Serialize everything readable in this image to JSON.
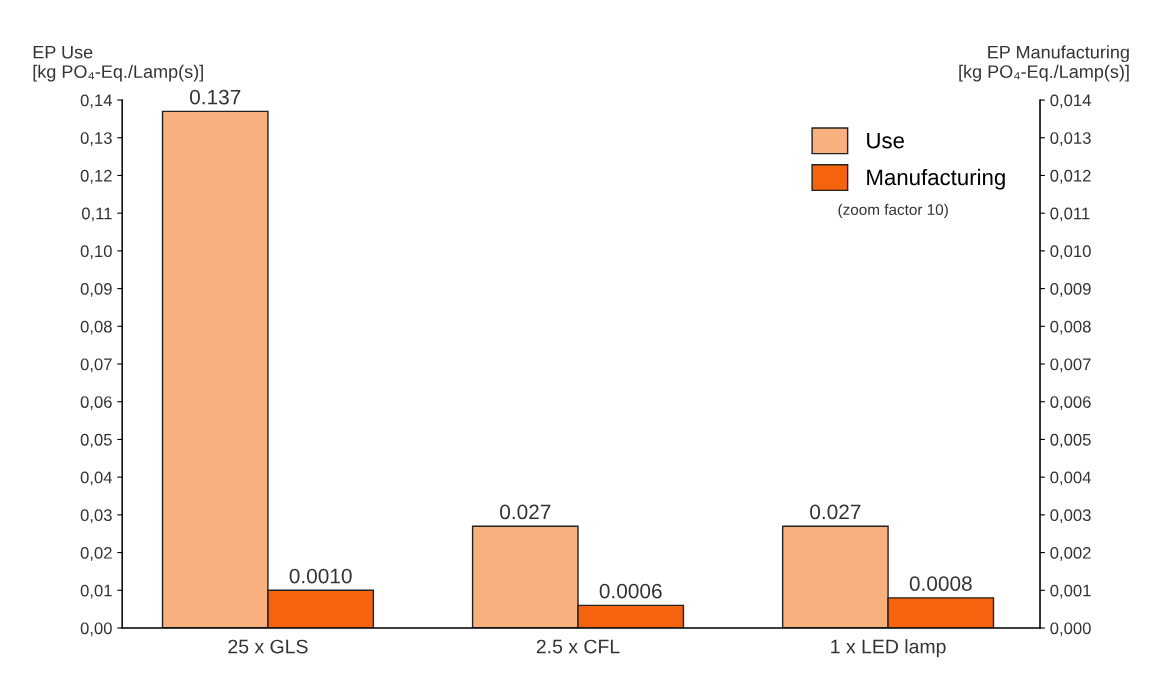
{
  "chart_data": {
    "type": "bar",
    "ylabel": "EP Use\n[kg PO₄-Eq./Lamp(s)]",
    "y2label": "EP Manufacturing\n[kg PO₄-Eq./Lamp(s)]",
    "categories": [
      "25 x GLS",
      "2.5 x CFL",
      "1 x LED lamp"
    ],
    "series": [
      {
        "name": "Use",
        "color": "#f8b07f",
        "values": [
          0.137,
          0.027,
          0.027
        ],
        "value_labels": [
          "0.137",
          "0.027",
          "0.027"
        ]
      },
      {
        "name": "Manufacturing",
        "color": "#f5630f",
        "values": [
          0.001,
          0.0006,
          0.0008
        ],
        "value_labels": [
          "0.0010",
          "0.0006",
          "0.0008"
        ],
        "axis": "y2"
      }
    ],
    "ylim": [
      0,
      0.14
    ],
    "yticks": [
      {
        "value": 0,
        "label": "0,00"
      },
      {
        "value": 0.01,
        "label": "0,01"
      },
      {
        "value": 0.02,
        "label": "0,02"
      },
      {
        "value": 0.03,
        "label": "0,03"
      },
      {
        "value": 0.04,
        "label": "0,04"
      },
      {
        "value": 0.05,
        "label": "0,05"
      },
      {
        "value": 0.06,
        "label": "0,06"
      },
      {
        "value": 0.07,
        "label": "0,07"
      },
      {
        "value": 0.08,
        "label": "0,08"
      },
      {
        "value": 0.09,
        "label": "0,09"
      },
      {
        "value": 0.1,
        "label": "0,10"
      },
      {
        "value": 0.11,
        "label": "0,11"
      },
      {
        "value": 0.12,
        "label": "0,12"
      },
      {
        "value": 0.13,
        "label": "0,13"
      },
      {
        "value": 0.14,
        "label": "0,14"
      }
    ],
    "y2lim": [
      0,
      0.014
    ],
    "y2ticks": [
      {
        "value": 0,
        "label": "0,000"
      },
      {
        "value": 0.001,
        "label": "0,001"
      },
      {
        "value": 0.002,
        "label": "0,002"
      },
      {
        "value": 0.003,
        "label": "0,003"
      },
      {
        "value": 0.004,
        "label": "0,004"
      },
      {
        "value": 0.005,
        "label": "0,005"
      },
      {
        "value": 0.006,
        "label": "0,006"
      },
      {
        "value": 0.007,
        "label": "0,007"
      },
      {
        "value": 0.008,
        "label": "0,008"
      },
      {
        "value": 0.009,
        "label": "0,009"
      },
      {
        "value": 0.01,
        "label": "0,010"
      },
      {
        "value": 0.011,
        "label": "0,011"
      },
      {
        "value": 0.012,
        "label": "0,012"
      },
      {
        "value": 0.013,
        "label": "0,013"
      },
      {
        "value": 0.014,
        "label": "0,014"
      }
    ],
    "annotations": [
      "(zoom factor 10)"
    ],
    "legend": "top right",
    "grid": false
  }
}
